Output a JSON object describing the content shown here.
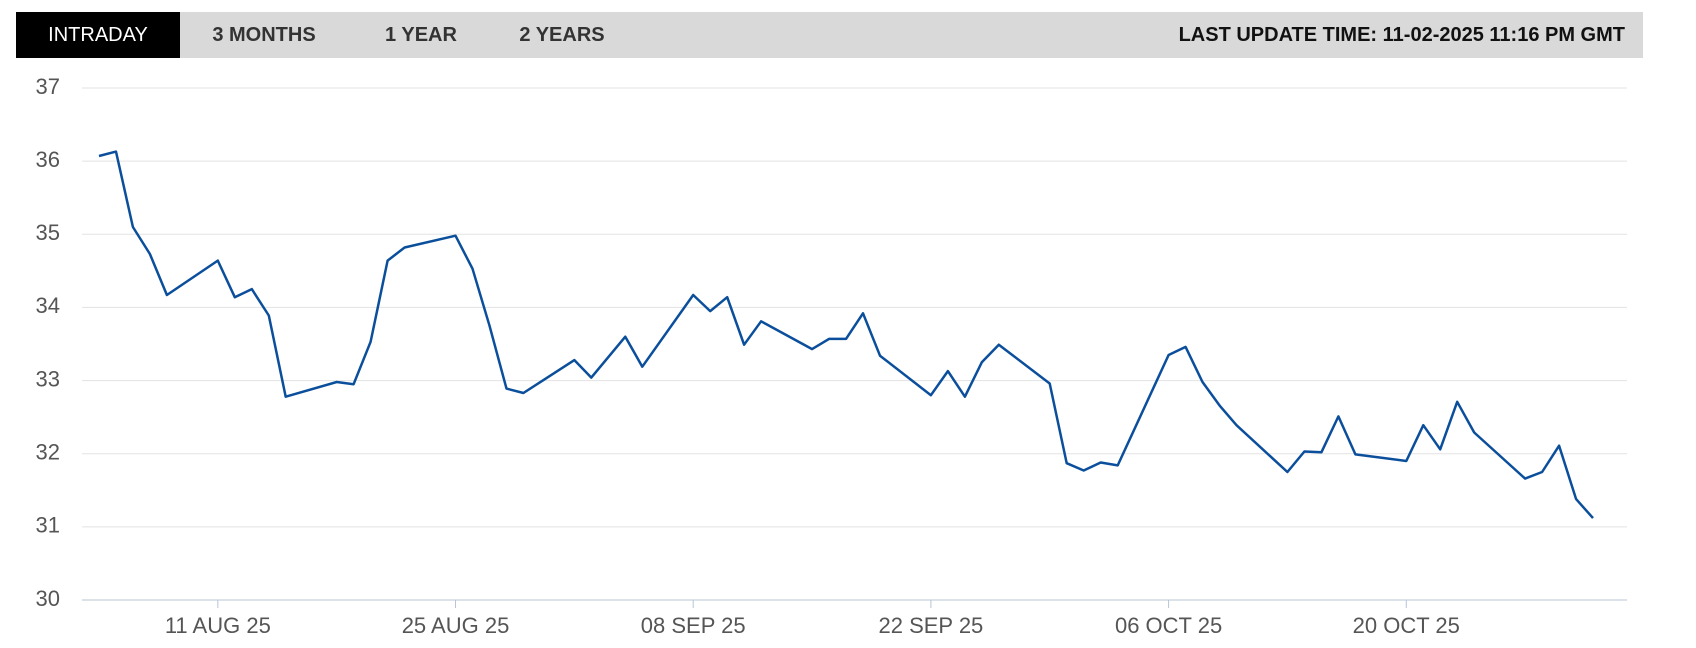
{
  "tabs": [
    "INTRADAY",
    "3 MONTHS",
    "1 YEAR",
    "2 YEARS"
  ],
  "last_update": "LAST UPDATE TIME: 11-02-2025 11:16 PM GMT",
  "chart_data": {
    "type": "line",
    "color": "#0b4f9c",
    "grid": true,
    "x": [
      "2025-08-04",
      "2025-08-05",
      "2025-08-06",
      "2025-08-07",
      "2025-08-08",
      "2025-08-11",
      "2025-08-12",
      "2025-08-13",
      "2025-08-14",
      "2025-08-15",
      "2025-08-18",
      "2025-08-19",
      "2025-08-20",
      "2025-08-21",
      "2025-08-22",
      "2025-08-25",
      "2025-08-26",
      "2025-08-27",
      "2025-08-28",
      "2025-08-29",
      "2025-09-01",
      "2025-09-02",
      "2025-09-04",
      "2025-09-05",
      "2025-09-08",
      "2025-09-09",
      "2025-09-10",
      "2025-09-11",
      "2025-09-12",
      "2025-09-15",
      "2025-09-16",
      "2025-09-17",
      "2025-09-18",
      "2025-09-19",
      "2025-09-22",
      "2025-09-23",
      "2025-09-24",
      "2025-09-25",
      "2025-09-26",
      "2025-09-29",
      "2025-09-30",
      "2025-10-01",
      "2025-10-02",
      "2025-10-03",
      "2025-10-06",
      "2025-10-07",
      "2025-10-08",
      "2025-10-09",
      "2025-10-10",
      "2025-10-13",
      "2025-10-14",
      "2025-10-15",
      "2025-10-16",
      "2025-10-17",
      "2025-10-20",
      "2025-10-21",
      "2025-10-22",
      "2025-10-23",
      "2025-10-24",
      "2025-10-27",
      "2025-10-28",
      "2025-10-29",
      "2025-10-30",
      "2025-10-31"
    ],
    "values": [
      36.07,
      36.13,
      35.1,
      34.73,
      34.17,
      34.64,
      34.14,
      34.25,
      33.89,
      32.78,
      32.98,
      32.95,
      33.53,
      34.64,
      34.82,
      34.98,
      34.53,
      33.75,
      32.89,
      32.83,
      33.28,
      33.04,
      33.6,
      33.19,
      34.17,
      33.95,
      34.14,
      33.49,
      33.81,
      33.43,
      33.57,
      33.57,
      33.92,
      33.34,
      32.8,
      33.13,
      32.78,
      33.25,
      33.49,
      32.96,
      31.87,
      31.77,
      31.88,
      31.84,
      33.35,
      33.46,
      32.98,
      32.66,
      32.39,
      31.75,
      32.03,
      32.02,
      32.51,
      31.99,
      31.9,
      32.39,
      32.06,
      32.71,
      32.29,
      31.66,
      31.75,
      32.11,
      31.38,
      31.12
    ],
    "xlim": [
      "2025-08-03",
      "2025-11-02"
    ],
    "xticks": [
      {
        "value": "2025-08-11",
        "label": "11 AUG 25"
      },
      {
        "value": "2025-08-25",
        "label": "25 AUG 25"
      },
      {
        "value": "2025-09-08",
        "label": "08 SEP 25"
      },
      {
        "value": "2025-09-22",
        "label": "22 SEP 25"
      },
      {
        "value": "2025-10-06",
        "label": "06 OCT 25"
      },
      {
        "value": "2025-10-20",
        "label": "20 OCT 25"
      }
    ],
    "ylim": [
      30,
      37
    ],
    "yticks": [
      30,
      31,
      32,
      33,
      34,
      35,
      36,
      37
    ]
  }
}
